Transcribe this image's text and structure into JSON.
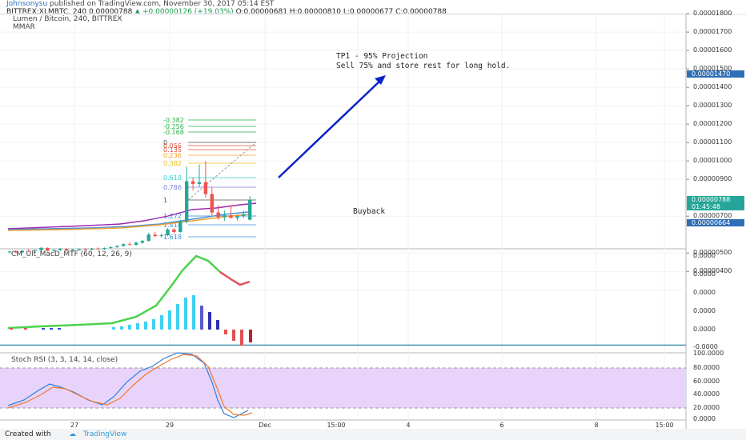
{
  "header": {
    "user": "Johnsonysu",
    "published": " published on TradingView.com, November 30, 2017 05:14 EST",
    "symbol_line": "BITTREX:XLMBTC, 240  0.00000788",
    "change": "▲ +0.00000126 (+19.03%)",
    "ohlc": "O:0.00000681  H:0.00000810  L:0.00000677  C:0.00000788"
  },
  "main_legend": [
    "Lumen / Bitcoin, 240, BITTREX",
    "MMAR"
  ],
  "annotations": {
    "tp1": "TP1 - 95% Projection",
    "sell": "Sell 75% and store rest for long hold.",
    "buyback": "Buyback"
  },
  "fib_labels": [
    "-0.382",
    "-0.256",
    "-0.168",
    "0",
    "0.056",
    "0.135",
    "0.236",
    "0.382",
    "0.618",
    "0.786",
    "1",
    "1.272",
    "1.414",
    "1.618"
  ],
  "price_axis": [
    "0.00001800",
    "0.00001700",
    "0.00001600",
    "0.00001500",
    "0.00001400",
    "0.00001300",
    "0.00001200",
    "0.00001100",
    "0.00001000",
    "0.00000900",
    "0.00000700",
    "0.00000500",
    "0.00000400"
  ],
  "price_tags": [
    {
      "text": "0.00001470",
      "color": "#2f6eb6"
    },
    {
      "text": "0.00000788",
      "color": "#26a69a"
    },
    {
      "text": "01:45:48",
      "color": "#26a69a"
    },
    {
      "text": "0.00000664",
      "color": "#2f6eb6"
    }
  ],
  "macd_title": "CM_Ult_MacD_MTF (60, 12, 26, 9)",
  "macd_axis": [
    "0.0000",
    "0.0000",
    "0.0000",
    "0.0000",
    "0.0000",
    "-0.0000"
  ],
  "stoch_title": "Stoch RSI (3, 3, 14, 14, close)",
  "stoch_axis": [
    "100.0000",
    "80.0000",
    "60.0000",
    "40.0000",
    "20.0000",
    "0.0000"
  ],
  "x_axis": [
    "27",
    "29",
    "Dec",
    "15:00",
    "4",
    "6",
    "8",
    "15:00"
  ],
  "footer": {
    "created": "Created with",
    "brand": "TradingView"
  },
  "chart_data": {
    "type": "candlestick",
    "symbol": "BITTREX:XLMBTC",
    "interval": "240",
    "ohlc_last": {
      "open": 6.81e-06,
      "high": 8.1e-06,
      "low": 6.77e-06,
      "close": 7.88e-06
    },
    "levels": {
      "tp1": 1.47e-05,
      "buyback": 6.64e-06,
      "last": 7.88e-06
    },
    "candles": [
      {
        "o": 5.05,
        "h": 5.12,
        "l": 4.98,
        "c": 5.08
      },
      {
        "o": 5.08,
        "h": 5.14,
        "l": 5.0,
        "c": 5.04
      },
      {
        "o": 5.04,
        "h": 5.16,
        "l": 5.0,
        "c": 5.12
      },
      {
        "o": 5.12,
        "h": 5.2,
        "l": 5.06,
        "c": 5.1
      },
      {
        "o": 5.1,
        "h": 5.18,
        "l": 5.04,
        "c": 5.15
      },
      {
        "o": 5.15,
        "h": 5.32,
        "l": 5.1,
        "c": 5.28
      },
      {
        "o": 5.28,
        "h": 5.3,
        "l": 5.08,
        "c": 5.12
      },
      {
        "o": 5.12,
        "h": 5.2,
        "l": 5.06,
        "c": 5.16
      },
      {
        "o": 5.16,
        "h": 5.28,
        "l": 5.1,
        "c": 5.22
      },
      {
        "o": 5.22,
        "h": 5.25,
        "l": 5.1,
        "c": 5.14
      },
      {
        "o": 5.14,
        "h": 5.22,
        "l": 5.08,
        "c": 5.18
      },
      {
        "o": 5.18,
        "h": 5.24,
        "l": 5.12,
        "c": 5.2
      },
      {
        "o": 5.2,
        "h": 5.26,
        "l": 5.14,
        "c": 5.18
      },
      {
        "o": 5.18,
        "h": 5.28,
        "l": 5.14,
        "c": 5.24
      },
      {
        "o": 5.24,
        "h": 5.3,
        "l": 5.18,
        "c": 5.22
      },
      {
        "o": 5.22,
        "h": 5.3,
        "l": 5.18,
        "c": 5.27
      },
      {
        "o": 5.27,
        "h": 5.36,
        "l": 5.22,
        "c": 5.32
      },
      {
        "o": 5.32,
        "h": 5.42,
        "l": 5.28,
        "c": 5.38
      },
      {
        "o": 5.38,
        "h": 5.52,
        "l": 5.34,
        "c": 5.48
      },
      {
        "o": 5.48,
        "h": 5.6,
        "l": 5.42,
        "c": 5.44
      },
      {
        "o": 5.44,
        "h": 5.62,
        "l": 5.4,
        "c": 5.56
      },
      {
        "o": 5.56,
        "h": 5.72,
        "l": 5.5,
        "c": 5.66
      },
      {
        "o": 5.66,
        "h": 6.1,
        "l": 5.62,
        "c": 6.0
      },
      {
        "o": 6.0,
        "h": 6.15,
        "l": 5.86,
        "c": 5.92
      },
      {
        "o": 5.92,
        "h": 6.05,
        "l": 5.84,
        "c": 5.96
      },
      {
        "o": 5.96,
        "h": 6.35,
        "l": 5.92,
        "c": 6.28
      },
      {
        "o": 6.28,
        "h": 6.34,
        "l": 6.06,
        "c": 6.14
      },
      {
        "o": 6.14,
        "h": 6.8,
        "l": 6.1,
        "c": 6.7
      },
      {
        "o": 6.7,
        "h": 9.7,
        "l": 6.6,
        "c": 8.9
      },
      {
        "o": 8.9,
        "h": 9.1,
        "l": 8.4,
        "c": 8.75
      },
      {
        "o": 8.75,
        "h": 9.8,
        "l": 8.6,
        "c": 8.85
      },
      {
        "o": 8.85,
        "h": 10.0,
        "l": 8.0,
        "c": 8.2
      },
      {
        "o": 8.2,
        "h": 8.6,
        "l": 7.0,
        "c": 7.2
      },
      {
        "o": 7.2,
        "h": 7.6,
        "l": 6.8,
        "c": 6.95
      },
      {
        "o": 6.95,
        "h": 7.3,
        "l": 6.75,
        "c": 7.05
      },
      {
        "o": 7.05,
        "h": 7.6,
        "l": 6.9,
        "c": 6.9
      },
      {
        "o": 6.9,
        "h": 7.1,
        "l": 6.77,
        "c": 7.0
      },
      {
        "o": 7.0,
        "h": 7.3,
        "l": 6.9,
        "c": 7.1
      },
      {
        "o": 6.81,
        "h": 8.1,
        "l": 6.77,
        "c": 7.88
      }
    ],
    "candle_unit": "1e-6 BTC"
  }
}
